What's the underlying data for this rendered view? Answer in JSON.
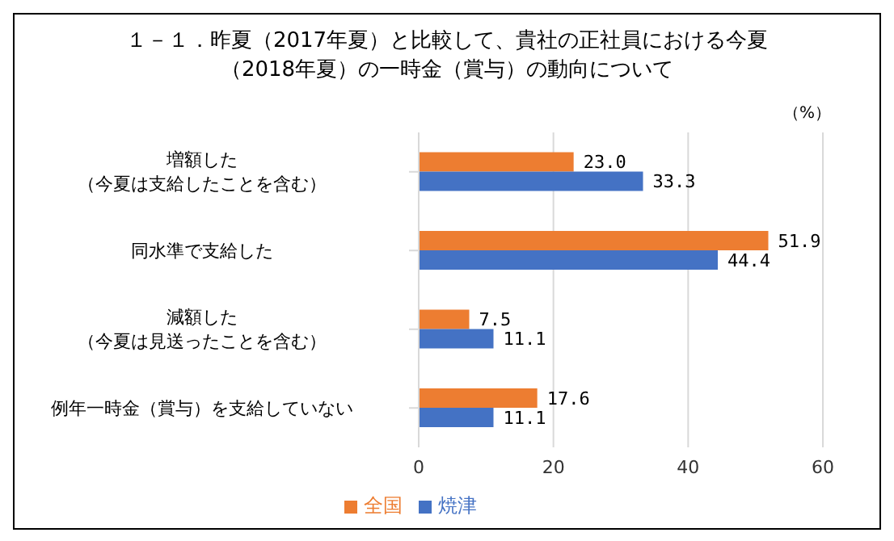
{
  "chart_data": {
    "type": "bar",
    "orientation": "horizontal",
    "title": "１－１．昨夏（2017年夏）と比較して、貴社の正社員における今夏（2018年夏）の一時金（賞与）の動向について",
    "annotations": [
      "（%）"
    ],
    "categories": [
      "増額した（今夏は支給したことを含む）",
      "同水準で支給した",
      "減額した（今夏は見送ったことを含む）",
      "例年一時金（賞与）を支給していない"
    ],
    "series": [
      {
        "name": "全国",
        "color": "#ed7d31",
        "values": [
          23.0,
          51.9,
          7.5,
          17.6
        ],
        "value_labels": [
          "23.0",
          "51.9",
          "7.5",
          "17.6"
        ]
      },
      {
        "name": "焼津",
        "color": "#4472c4",
        "values": [
          33.3,
          44.4,
          11.1,
          11.1
        ],
        "value_labels": [
          "33.3",
          "44.4",
          "11.1",
          "11.1"
        ]
      }
    ],
    "xlim": [
      0,
      60
    ],
    "xticks": [
      0,
      20,
      40,
      60
    ],
    "grid": "x",
    "legend": "bottom"
  }
}
